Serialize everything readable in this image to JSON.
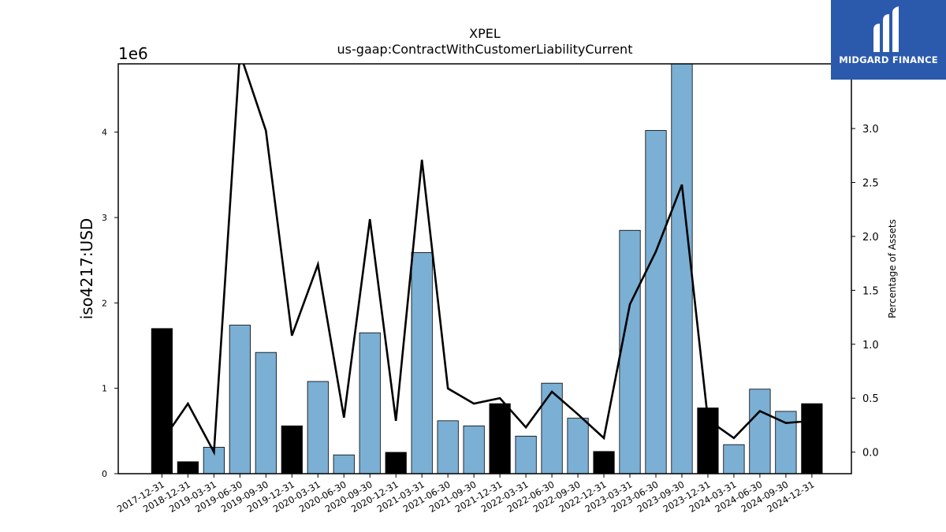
{
  "brand": {
    "name": "MIDGARD FINANCE",
    "bg_color": "#2b5aad"
  },
  "chart_data": {
    "type": "bar",
    "title": "XPEL",
    "subtitle": "us-gaap:ContractWithCustomerLiabilityCurrent",
    "ylabel": "iso4217:USD",
    "y_offset_label": "1e6",
    "y2label": "Percentage of Assets",
    "ylim": [
      0,
      4.8
    ],
    "y2lim": [
      -0.2,
      3.6
    ],
    "yticks": [
      "0",
      "1",
      "2",
      "3",
      "4"
    ],
    "y2ticks": [
      "0.0",
      "0.5",
      "1.0",
      "1.5",
      "2.0",
      "2.5",
      "3.0"
    ],
    "grid": false,
    "bar_colors": {
      "annual": "#000000",
      "quarterly": "#7bafd4"
    },
    "line_color": "#000000",
    "categories": [
      "2017-12-31",
      "2018-12-31",
      "2019-03-31",
      "2019-06-30",
      "2019-09-30",
      "2019-12-31",
      "2020-03-31",
      "2020-06-30",
      "2020-09-30",
      "2020-12-31",
      "2021-03-31",
      "2021-06-30",
      "2021-09-30",
      "2021-12-31",
      "2022-03-31",
      "2022-06-30",
      "2022-09-30",
      "2022-12-31",
      "2023-03-31",
      "2023-06-30",
      "2023-09-30",
      "2023-12-31",
      "2024-03-31",
      "2024-06-30",
      "2024-09-30",
      "2024-12-31"
    ],
    "period_type": [
      "annual",
      "annual",
      "quarterly",
      "quarterly",
      "quarterly",
      "annual",
      "quarterly",
      "quarterly",
      "quarterly",
      "annual",
      "quarterly",
      "quarterly",
      "quarterly",
      "annual",
      "quarterly",
      "quarterly",
      "quarterly",
      "annual",
      "quarterly",
      "quarterly",
      "quarterly",
      "annual",
      "quarterly",
      "quarterly",
      "quarterly",
      "annual"
    ],
    "series": [
      {
        "values": [
          1.7,
          0.14,
          0.31,
          1.74,
          1.42,
          0.56,
          1.08,
          0.22,
          1.65,
          0.25,
          2.59,
          0.62,
          0.56,
          0.82,
          0.44,
          1.06,
          0.65,
          0.26,
          2.85,
          4.02,
          4.85,
          0.77,
          0.34,
          0.99,
          0.73,
          0.82
        ]
      },
      {
        "axis": "right",
        "type": "line",
        "values": [
          0.1,
          0.45,
          0.0,
          3.7,
          2.98,
          1.08,
          1.74,
          0.32,
          2.16,
          0.29,
          2.71,
          0.59,
          0.45,
          0.5,
          0.23,
          0.56,
          0.35,
          0.13,
          1.37,
          1.86,
          2.48,
          0.3,
          0.13,
          0.38,
          0.27,
          0.29
        ]
      }
    ]
  }
}
